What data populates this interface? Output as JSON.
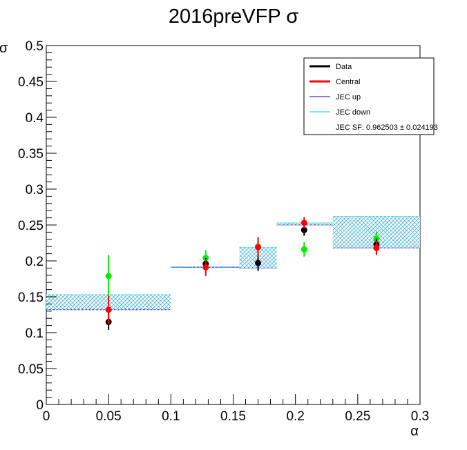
{
  "chart_data": {
    "type": "scatter",
    "title": "2016preVFP σ",
    "xlabel": "α",
    "ylabel": "σ",
    "xlim": [
      0,
      0.3
    ],
    "ylim": [
      0,
      0.5
    ],
    "grid": false,
    "legend_position": "top-right",
    "x_ticks": [
      "0",
      "0.05",
      "0.1",
      "0.15",
      "0.2",
      "0.25",
      "0.3"
    ],
    "y_ticks": [
      "0",
      "0.05",
      "0.1",
      "0.15",
      "0.2",
      "0.25",
      "0.3",
      "0.35",
      "0.4",
      "0.45",
      "0.5"
    ],
    "x_ticks_values": [
      0,
      0.05,
      0.1,
      0.15,
      0.2,
      0.25,
      0.3
    ],
    "y_ticks_values": [
      0,
      0.05,
      0.1,
      0.15,
      0.2,
      0.25,
      0.3,
      0.35,
      0.4,
      0.45,
      0.5
    ],
    "legend": [
      {
        "label": "Data",
        "color": "#000000",
        "marker": "line"
      },
      {
        "label": "Central",
        "color": "#ff0000",
        "marker": "line"
      },
      {
        "label": "JEC up",
        "color": "#0000cc",
        "marker": "line-thin"
      },
      {
        "label": "JEC down",
        "color": "#00cccc",
        "marker": "line-thin"
      },
      {
        "label": "JEC SF: 0.962503 ± 0.024193",
        "color": "#ffffff",
        "marker": "none"
      }
    ],
    "bands": [
      {
        "x0": 0.0,
        "x1": 0.1,
        "lo": 0.132,
        "hi": 0.153
      },
      {
        "x0": 0.1,
        "x1": 0.155,
        "lo": 0.191,
        "hi": 0.192
      },
      {
        "x0": 0.155,
        "x1": 0.185,
        "lo": 0.19,
        "hi": 0.219
      },
      {
        "x0": 0.185,
        "x1": 0.23,
        "lo": 0.25,
        "hi": 0.253
      },
      {
        "x0": 0.23,
        "x1": 0.3,
        "lo": 0.218,
        "hi": 0.262
      }
    ],
    "band_colors": {
      "up": "#0000cc",
      "down": "#00cccc"
    },
    "series": [
      {
        "name": "Data",
        "color": "#000000",
        "points": [
          {
            "x": 0.05,
            "y": 0.115,
            "err": 0.011
          },
          {
            "x": 0.128,
            "y": 0.196,
            "err": 0.008
          },
          {
            "x": 0.17,
            "y": 0.197,
            "err": 0.011
          },
          {
            "x": 0.207,
            "y": 0.243,
            "err": 0.008
          },
          {
            "x": 0.265,
            "y": 0.223,
            "err": 0.008
          }
        ]
      },
      {
        "name": "Central",
        "color": "#ff0000",
        "points": [
          {
            "x": 0.05,
            "y": 0.132,
            "err": 0.02
          },
          {
            "x": 0.128,
            "y": 0.191,
            "err": 0.012
          },
          {
            "x": 0.17,
            "y": 0.219,
            "err": 0.014
          },
          {
            "x": 0.207,
            "y": 0.253,
            "err": 0.008
          },
          {
            "x": 0.265,
            "y": 0.218,
            "err": 0.01
          }
        ]
      },
      {
        "name": "",
        "color": "#00ee00",
        "points": [
          {
            "x": 0.05,
            "y": 0.179,
            "err": 0.029
          },
          {
            "x": 0.128,
            "y": 0.204,
            "err": 0.011
          },
          {
            "x": 0.17,
            "y": 0.22,
            "err": 0.013
          },
          {
            "x": 0.207,
            "y": 0.216,
            "err": 0.01
          },
          {
            "x": 0.265,
            "y": 0.231,
            "err": 0.01
          }
        ]
      }
    ]
  }
}
